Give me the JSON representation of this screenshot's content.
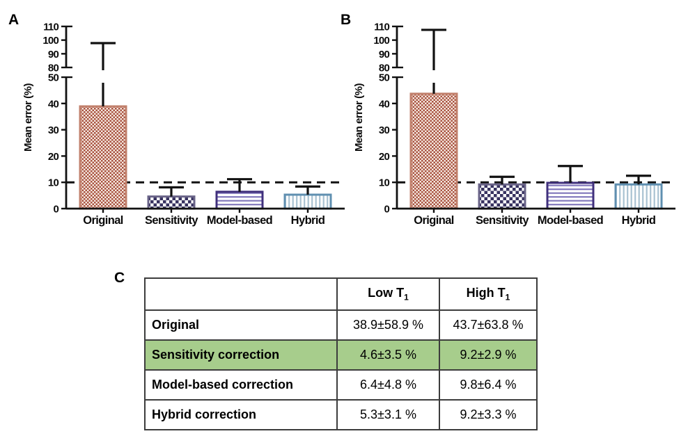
{
  "chart_data": [
    {
      "type": "bar",
      "panel_label": "A",
      "title": "",
      "xlabel": "",
      "ylabel": "Mean error (%)",
      "categories": [
        "Original",
        "Sensitivity",
        "Model-based",
        "Hybrid"
      ],
      "series": [
        {
          "name": "Low T1 mean error",
          "values": [
            38.9,
            4.6,
            6.4,
            5.3
          ],
          "errors": [
            58.9,
            3.5,
            4.8,
            3.1
          ]
        }
      ],
      "reference_line_y": 10,
      "yticks": [
        0,
        10,
        20,
        30,
        40,
        50,
        80,
        90,
        100,
        110
      ],
      "axis_break": {
        "lower_range": [
          0,
          50
        ],
        "upper_range": [
          80,
          110
        ]
      },
      "ylim": [
        0,
        110
      ],
      "grid": false,
      "legend": "none"
    },
    {
      "type": "bar",
      "panel_label": "B",
      "title": "",
      "xlabel": "",
      "ylabel": "Mean error (%)",
      "categories": [
        "Original",
        "Sensitivity",
        "Model-based",
        "Hybrid"
      ],
      "series": [
        {
          "name": "High T1 mean error",
          "values": [
            43.7,
            9.2,
            9.8,
            9.2
          ],
          "errors": [
            63.8,
            2.9,
            6.4,
            3.3
          ]
        }
      ],
      "reference_line_y": 10,
      "yticks": [
        0,
        10,
        20,
        30,
        40,
        50,
        80,
        90,
        100,
        110
      ],
      "axis_break": {
        "lower_range": [
          0,
          50
        ],
        "upper_range": [
          80,
          110
        ]
      },
      "ylim": [
        0,
        110
      ],
      "grid": false,
      "legend": "none"
    }
  ],
  "bar_styles": [
    {
      "category": "Original",
      "pattern": "checker-small",
      "fg": "#a8523f",
      "bg": "#f6e9e2",
      "border": "#c1806c"
    },
    {
      "category": "Sensitivity",
      "pattern": "checker-large",
      "fg": "#373260",
      "bg": "#ffffff",
      "border": "#6a6488"
    },
    {
      "category": "Model-based",
      "pattern": "hlines",
      "fg": "#8379bd",
      "bg": "#ffffff",
      "border": "#40307c"
    },
    {
      "category": "Hybrid",
      "pattern": "vlines",
      "fg": "#a9c2d2",
      "bg": "#ffffff",
      "border": "#5f8fb0"
    }
  ],
  "table": {
    "panel_label": "C",
    "columns": [
      "",
      "Low T₁",
      "High T₁"
    ],
    "rows": [
      {
        "label": "Original",
        "low_t1": "38.9±58.9 %",
        "high_t1": "43.7±63.8 %",
        "highlight": false
      },
      {
        "label": "Sensitivity correction",
        "low_t1": "4.6±3.5 %",
        "high_t1": "9.2±2.9 %",
        "highlight": true
      },
      {
        "label": "Model-based correction",
        "low_t1": "6.4±4.8 %",
        "high_t1": "9.8±6.4 %",
        "highlight": false
      },
      {
        "label": "Hybrid correction",
        "low_t1": "5.3±3.1 %",
        "high_t1": "9.2±3.3 %",
        "highlight": false
      }
    ],
    "highlight_color": "#a7cd8c"
  },
  "colors": {
    "axis": "#111111",
    "error_bar": "#111111",
    "dashed_reference_line": "#111111",
    "background": "#ffffff"
  }
}
